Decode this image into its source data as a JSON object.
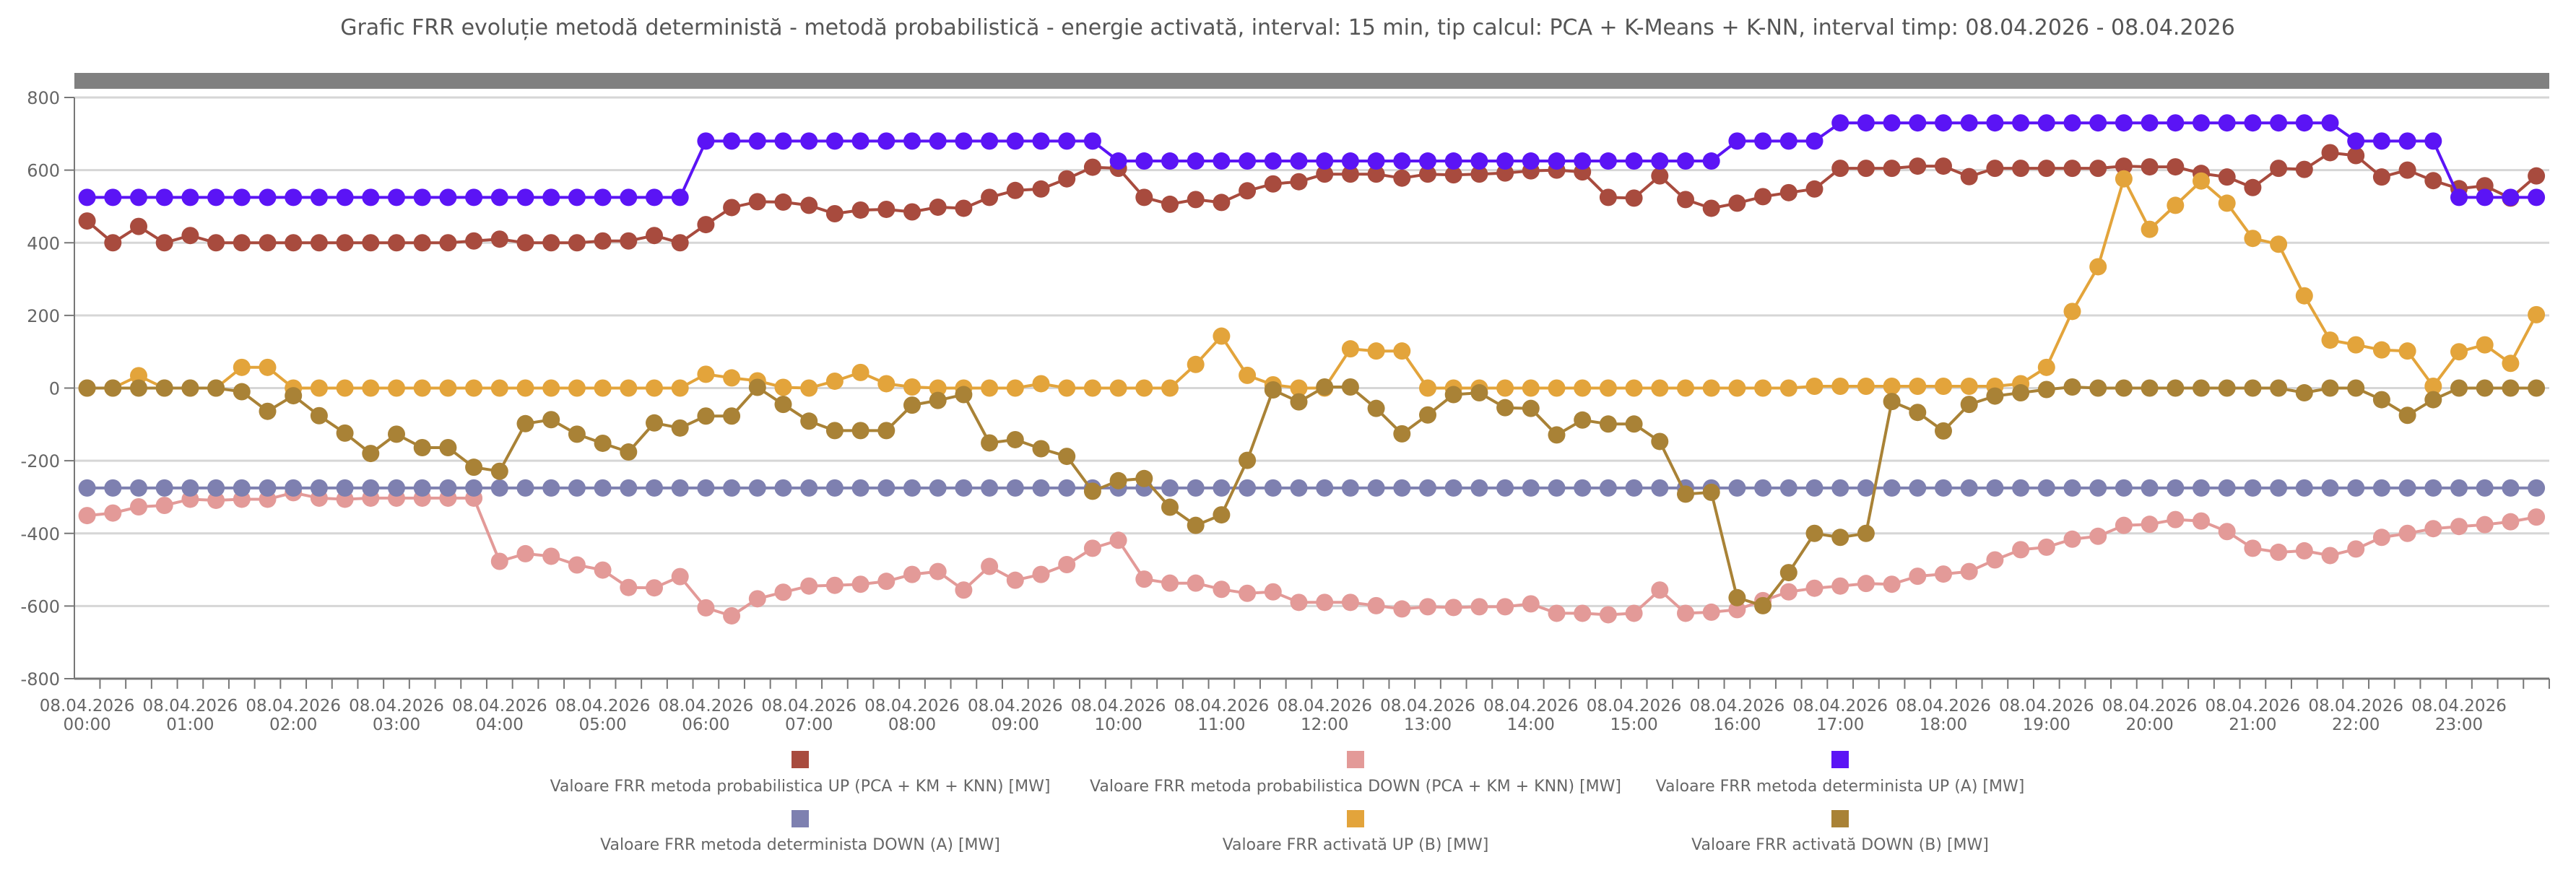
{
  "chart_data": {
    "type": "line",
    "title": "Grafic FRR evoluție metodă deterministă - metodă probabilistică - energie activată, interval: 15 min, tip calcul: PCA + K-Means + K-NN, interval timp: 08.04.2026 - 08.04.2026",
    "xlabel": "",
    "ylabel": "",
    "ylim": [
      -800,
      800
    ],
    "yticks": [
      "800",
      "600",
      "400",
      "200",
      "0",
      "-200",
      "-400",
      "-600",
      "-800"
    ],
    "grid": true,
    "legend_position": "bottom",
    "x_tick_labels": [
      {
        "date": "08.04.2026",
        "time": "00:00"
      },
      {
        "date": "08.04.2026",
        "time": "01:00"
      },
      {
        "date": "08.04.2026",
        "time": "02:00"
      },
      {
        "date": "08.04.2026",
        "time": "03:00"
      },
      {
        "date": "08.04.2026",
        "time": "04:00"
      },
      {
        "date": "08.04.2026",
        "time": "05:00"
      },
      {
        "date": "08.04.2026",
        "time": "06:00"
      },
      {
        "date": "08.04.2026",
        "time": "07:00"
      },
      {
        "date": "08.04.2026",
        "time": "08:00"
      },
      {
        "date": "08.04.2026",
        "time": "09:00"
      },
      {
        "date": "08.04.2026",
        "time": "10:00"
      },
      {
        "date": "08.04.2026",
        "time": "11:00"
      },
      {
        "date": "08.04.2026",
        "time": "12:00"
      },
      {
        "date": "08.04.2026",
        "time": "13:00"
      },
      {
        "date": "08.04.2026",
        "time": "14:00"
      },
      {
        "date": "08.04.2026",
        "time": "15:00"
      },
      {
        "date": "08.04.2026",
        "time": "16:00"
      },
      {
        "date": "08.04.2026",
        "time": "17:00"
      },
      {
        "date": "08.04.2026",
        "time": "18:00"
      },
      {
        "date": "08.04.2026",
        "time": "19:00"
      },
      {
        "date": "08.04.2026",
        "time": "20:00"
      },
      {
        "date": "08.04.2026",
        "time": "21:00"
      },
      {
        "date": "08.04.2026",
        "time": "22:00"
      },
      {
        "date": "08.04.2026",
        "time": "23:00"
      }
    ],
    "x_interval": "15 min",
    "series": [
      {
        "name": "Valoare FRR metoda probabilistica UP (PCA + KM + KNN) [MW]",
        "color": "#A84B3E",
        "values": [
          460,
          400,
          445,
          400,
          420,
          400,
          400,
          400,
          400,
          400,
          400,
          400,
          400,
          400,
          400,
          405,
          410,
          400,
          400,
          400,
          405,
          405,
          420,
          400,
          450,
          497,
          513,
          512,
          503,
          480,
          490,
          492,
          485,
          498,
          495,
          525,
          544,
          548,
          576,
          608,
          605,
          525,
          506,
          519,
          511,
          543,
          562,
          568,
          589,
          589,
          589,
          578,
          589,
          587,
          589,
          592,
          598,
          600,
          595,
          525,
          523,
          584,
          519,
          495,
          509,
          527,
          538,
          548,
          605,
          605,
          605,
          611,
          611,
          582,
          605,
          605,
          605,
          605,
          605,
          611,
          609,
          609,
          591,
          581,
          552,
          605,
          602,
          648,
          640,
          581,
          600,
          571,
          549,
          557,
          523,
          584
        ]
      },
      {
        "name": "Valoare FRR metoda probabilistica DOWN (PCA + KM + KNN) [MW]",
        "color": "#E39A98",
        "values": [
          -351,
          -344,
          -327,
          -323,
          -306,
          -309,
          -306,
          -306,
          -288,
          -303,
          -306,
          -303,
          -303,
          -303,
          -303,
          -303,
          -477,
          -456,
          -463,
          -487,
          -501,
          -549,
          -550,
          -519,
          -605,
          -627,
          -580,
          -562,
          -545,
          -543,
          -540,
          -532,
          -513,
          -505,
          -556,
          -491,
          -529,
          -513,
          -486,
          -441,
          -419,
          -526,
          -537,
          -537,
          -554,
          -565,
          -561,
          -590,
          -590,
          -590,
          -599,
          -608,
          -602,
          -604,
          -602,
          -602,
          -594,
          -620,
          -620,
          -624,
          -620,
          -556,
          -620,
          -617,
          -610,
          -585,
          -561,
          -551,
          -545,
          -538,
          -540,
          -518,
          -512,
          -505,
          -473,
          -445,
          -438,
          -416,
          -408,
          -378,
          -375,
          -362,
          -366,
          -395,
          -441,
          -452,
          -448,
          -461,
          -443,
          -411,
          -400,
          -387,
          -381,
          -376,
          -368,
          -355
        ]
      },
      {
        "name": "Valoare FRR metoda determinista UP (A) [MW]",
        "color": "#5B14F5",
        "values": [
          525,
          525,
          525,
          525,
          525,
          525,
          525,
          525,
          525,
          525,
          525,
          525,
          525,
          525,
          525,
          525,
          525,
          525,
          525,
          525,
          525,
          525,
          525,
          525,
          680,
          680,
          680,
          680,
          680,
          680,
          680,
          680,
          680,
          680,
          680,
          680,
          680,
          680,
          680,
          680,
          625,
          625,
          625,
          625,
          625,
          625,
          625,
          625,
          625,
          625,
          625,
          625,
          625,
          625,
          625,
          625,
          625,
          625,
          625,
          625,
          625,
          625,
          625,
          625,
          680,
          680,
          680,
          680,
          730,
          730,
          730,
          730,
          730,
          730,
          730,
          730,
          730,
          730,
          730,
          730,
          730,
          730,
          730,
          730,
          730,
          730,
          730,
          730,
          680,
          680,
          680,
          680,
          525,
          525,
          525,
          525
        ]
      },
      {
        "name": "Valoare FRR metoda determinista DOWN (A) [MW]",
        "color": "#7E80B0",
        "values": [
          -275,
          -275,
          -275,
          -275,
          -275,
          -275,
          -275,
          -275,
          -275,
          -275,
          -275,
          -275,
          -275,
          -275,
          -275,
          -275,
          -275,
          -275,
          -275,
          -275,
          -275,
          -275,
          -275,
          -275,
          -275,
          -275,
          -275,
          -275,
          -275,
          -275,
          -275,
          -275,
          -275,
          -275,
          -275,
          -275,
          -275,
          -275,
          -275,
          -275,
          -275,
          -275,
          -275,
          -275,
          -275,
          -275,
          -275,
          -275,
          -275,
          -275,
          -275,
          -275,
          -275,
          -275,
          -275,
          -275,
          -275,
          -275,
          -275,
          -275,
          -275,
          -275,
          -275,
          -275,
          -275,
          -275,
          -275,
          -275,
          -275,
          -275,
          -275,
          -275,
          -275,
          -275,
          -275,
          -275,
          -275,
          -275,
          -275,
          -275,
          -275,
          -275,
          -275,
          -275,
          -275,
          -275,
          -275,
          -275,
          -275,
          -275,
          -275,
          -275,
          -275,
          -275,
          -275,
          -275
        ]
      },
      {
        "name": "Valoare FRR activată UP (B) [MW]",
        "color": "#E3A43B",
        "values": [
          0,
          0,
          34,
          0,
          0,
          0,
          57,
          57,
          0,
          0,
          0,
          0,
          0,
          0,
          0,
          0,
          0,
          0,
          0,
          0,
          0,
          0,
          0,
          0,
          38,
          28,
          20,
          2,
          0,
          19,
          43,
          12,
          3,
          0,
          0,
          0,
          0,
          12,
          0,
          0,
          0,
          0,
          0,
          65,
          143,
          35,
          9,
          0,
          0,
          108,
          102,
          102,
          0,
          0,
          0,
          0,
          0,
          0,
          0,
          0,
          0,
          0,
          0,
          0,
          0,
          0,
          0,
          5,
          5,
          5,
          5,
          5,
          5,
          5,
          5,
          12,
          57,
          211,
          334,
          576,
          437,
          503,
          570,
          509,
          412,
          396,
          254,
          132,
          119,
          105,
          102,
          5,
          100,
          119,
          68,
          202
        ]
      },
      {
        "name": "Valoare FRR activată DOWN (B) [MW]",
        "color": "#A98236",
        "values": [
          0,
          0,
          0,
          0,
          0,
          0,
          -10,
          -64,
          -21,
          -76,
          -124,
          -180,
          -127,
          -164,
          -164,
          -218,
          -229,
          -98,
          -87,
          -127,
          -152,
          -176,
          -96,
          -110,
          -77,
          -77,
          2,
          -45,
          -91,
          -117,
          -117,
          -117,
          -47,
          -34,
          -18,
          -151,
          -142,
          -167,
          -188,
          -284,
          -255,
          -249,
          -328,
          -378,
          -349,
          -199,
          -5,
          -38,
          3,
          3,
          -56,
          -126,
          -74,
          -18,
          -13,
          -54,
          -56,
          -129,
          -88,
          -99,
          -99,
          -147,
          -292,
          -287,
          -577,
          -599,
          -508,
          -400,
          -411,
          -400,
          -37,
          -67,
          -118,
          -45,
          -22,
          -13,
          -4,
          3,
          0,
          0,
          0,
          0,
          0,
          0,
          0,
          0,
          -13,
          0,
          0,
          -32,
          -75,
          -32,
          0,
          0,
          0,
          0
        ]
      }
    ]
  }
}
